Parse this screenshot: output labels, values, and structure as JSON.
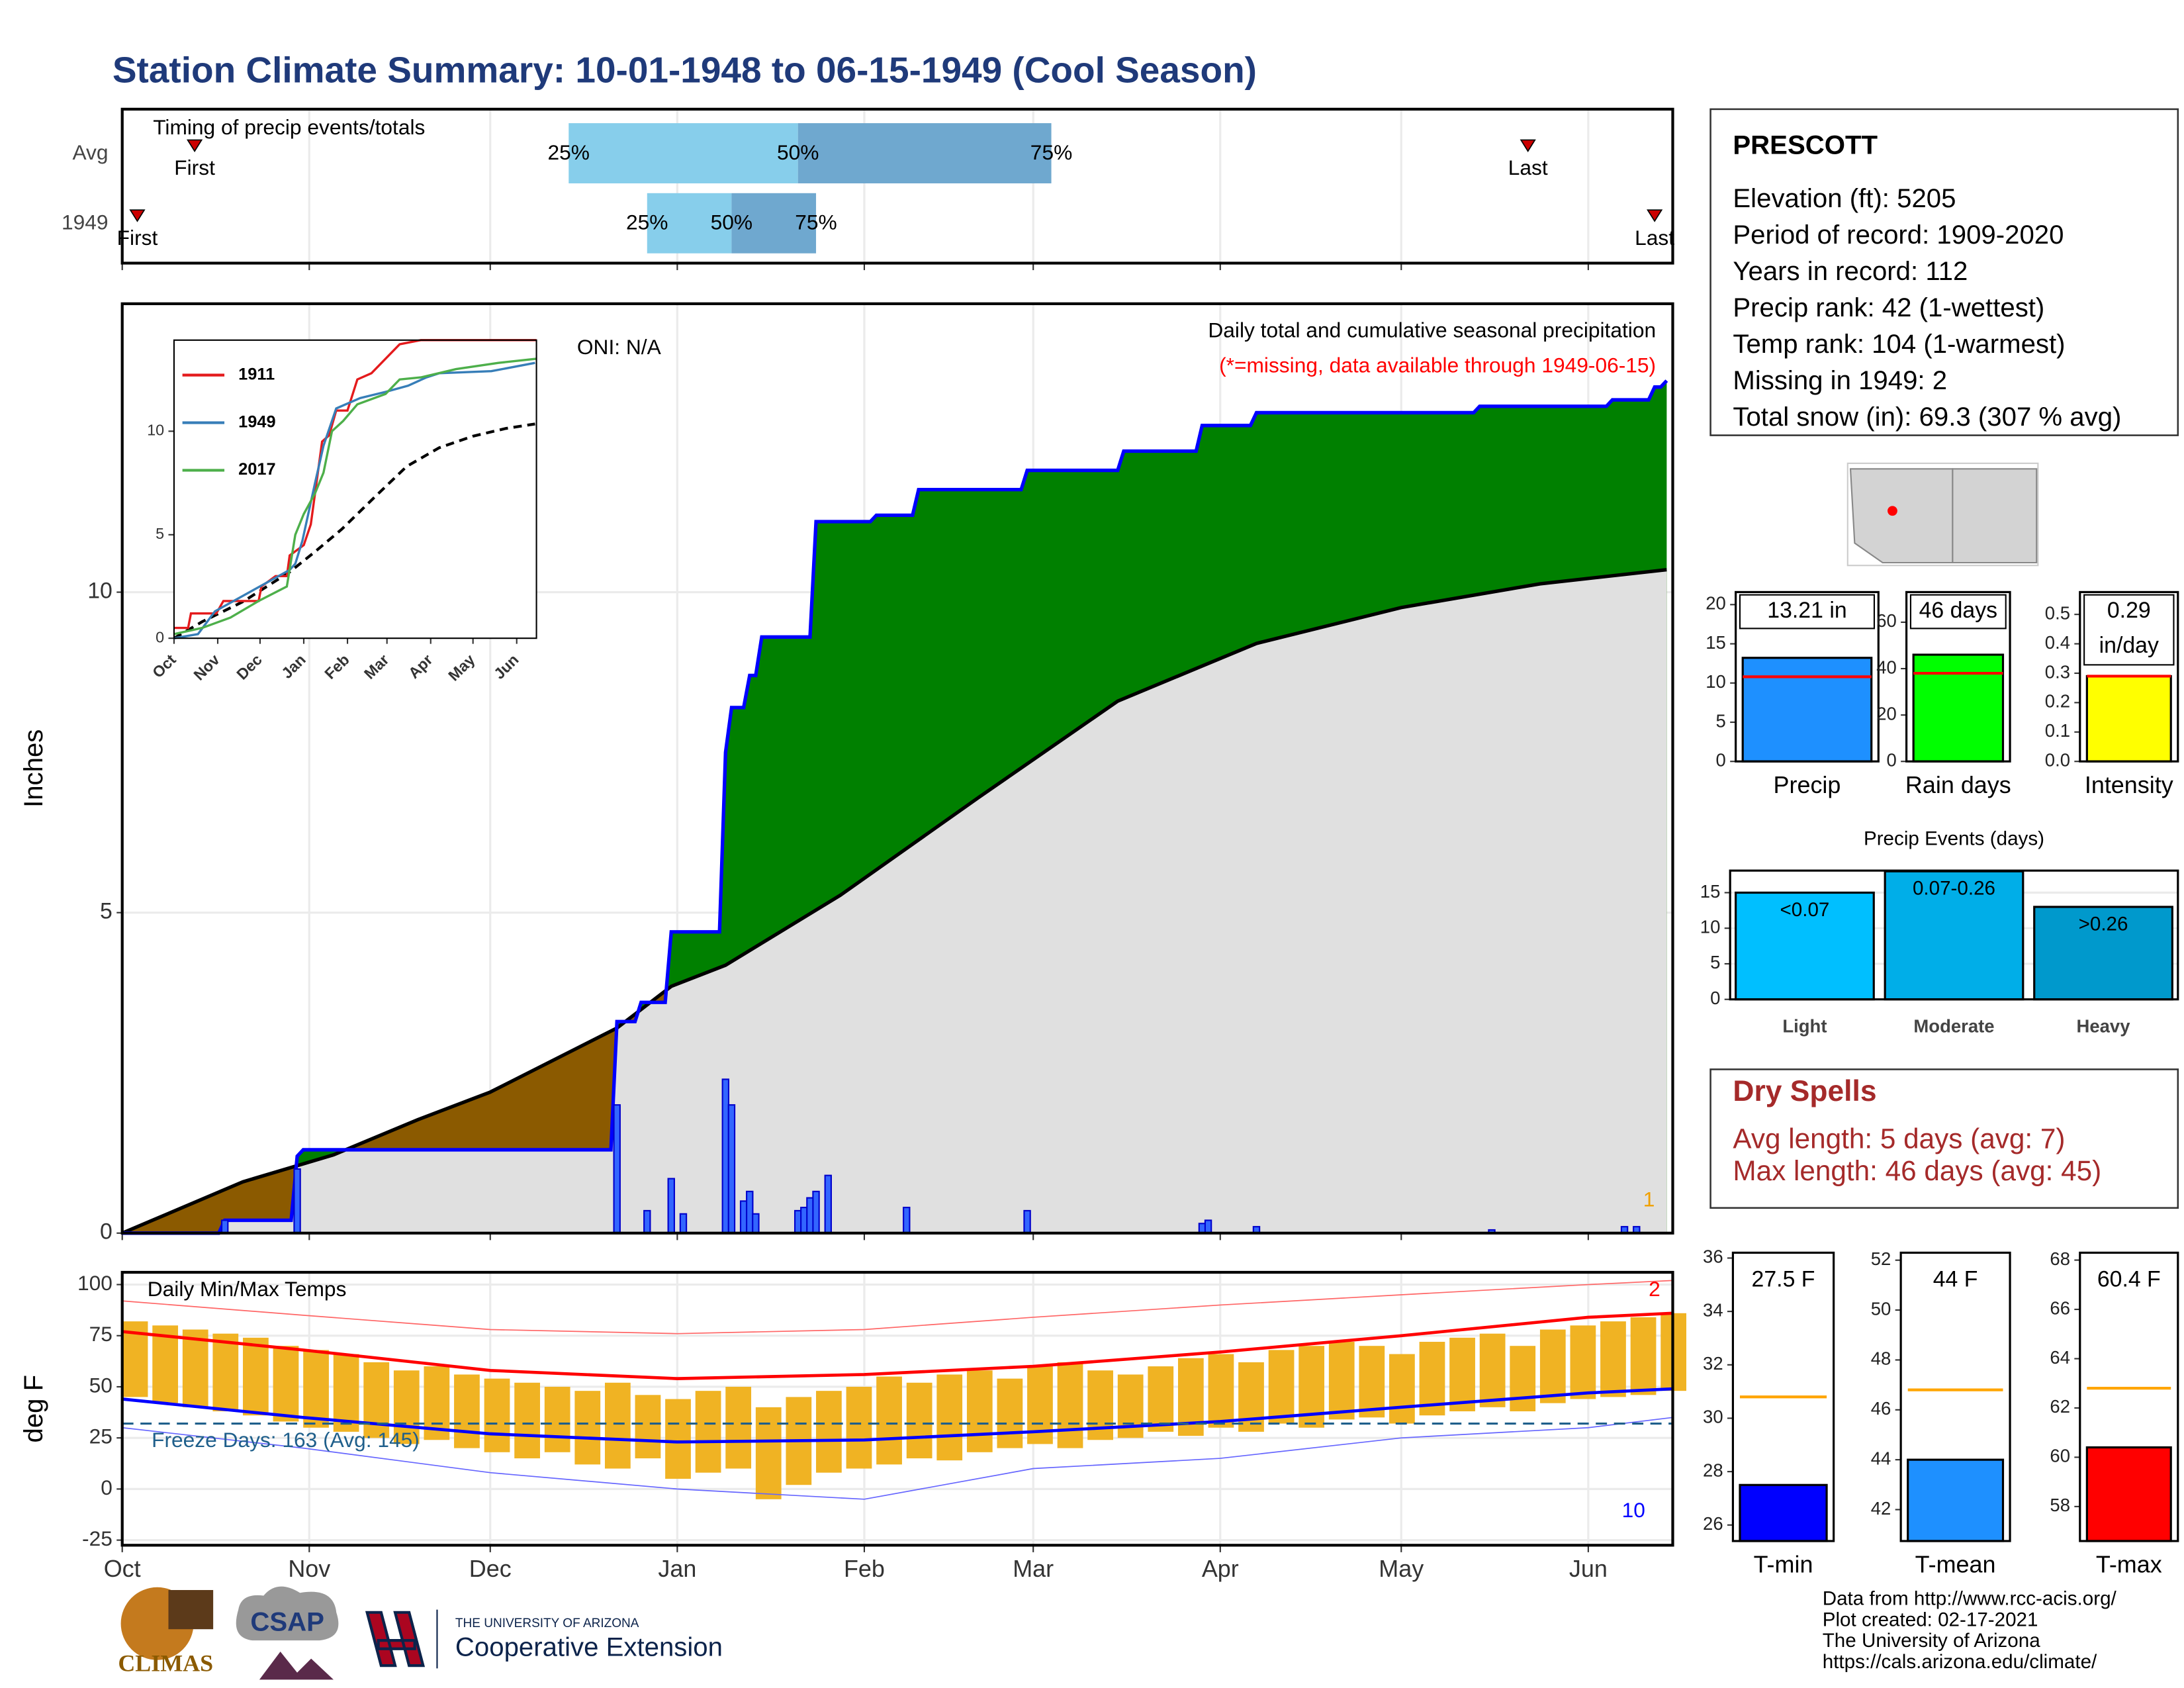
{
  "title": "Station Climate Summary: 10-01-1948 to 06-15-1949 (Cool Season)",
  "chart_data": [
    {
      "type": "timing",
      "title": "Timing of precip events/totals",
      "categories": [
        "Avg",
        "1949"
      ],
      "rows": [
        {
          "first": 12,
          "q25": 74,
          "q50": 112,
          "q75": 154,
          "last": 233
        },
        {
          "first": 2.5,
          "q25": 87,
          "q50": 101,
          "q75": 115,
          "last": 254
        }
      ],
      "first_label": "First",
      "last_label": "Last",
      "quartile_labels": [
        "25%",
        "50%",
        "75%"
      ],
      "colors": [
        "#87ceeb",
        "#6fa8cf"
      ],
      "marker_color": "#cc0000",
      "xlim": [
        0,
        257
      ],
      "xticks": [
        0,
        31,
        61,
        92,
        123,
        151,
        182,
        212,
        243
      ],
      "grid": true
    },
    {
      "type": "cumulative-precip",
      "title": "Daily total and cumulative seasonal precipitation",
      "subtitle": "(*=missing, data available through 1949-06-15)",
      "annotations": [
        "ONI: N/A",
        "1"
      ],
      "ylabel": "Inches",
      "xlim": [
        0,
        257
      ],
      "xticks": [
        0,
        31,
        61,
        92,
        123,
        151,
        182,
        212,
        243
      ],
      "ylim": [
        0,
        14.5
      ],
      "yticks": [
        0,
        5,
        10
      ],
      "grid": true,
      "cumulative": {
        "color": "#0000ff",
        "x": [
          0,
          16,
          17,
          28,
          29,
          30,
          81,
          82,
          85,
          86,
          90,
          91,
          99,
          100,
          101,
          103,
          104,
          105,
          106,
          114,
          115,
          124,
          125,
          131,
          132,
          149,
          150,
          165,
          166,
          178,
          179,
          187,
          188,
          224,
          225,
          246,
          247,
          253,
          254,
          255,
          256
        ],
        "values": [
          0,
          0,
          0.2,
          0.2,
          1.2,
          1.3,
          1.3,
          3.3,
          3.3,
          3.6,
          3.6,
          4.7,
          4.7,
          7.5,
          8.2,
          8.2,
          8.7,
          8.7,
          9.3,
          9.3,
          11.1,
          11.1,
          11.2,
          11.2,
          11.6,
          11.6,
          11.9,
          11.9,
          12.2,
          12.2,
          12.6,
          12.6,
          12.8,
          12.8,
          12.9,
          12.9,
          13.0,
          13.0,
          13.2,
          13.2,
          13.3
        ]
      },
      "average": {
        "color": "#000000",
        "x": [
          0,
          5,
          20,
          35,
          49,
          61,
          82,
          91,
          100,
          119,
          142,
          165,
          188,
          212,
          235,
          256
        ],
        "values": [
          0,
          0.2,
          0.8,
          1.22,
          1.77,
          2.2,
          3.2,
          3.85,
          4.18,
          5.27,
          6.8,
          8.3,
          9.2,
          9.76,
          10.13,
          10.35
        ]
      },
      "daily": {
        "color": "#3366ff",
        "x": [
          17,
          29,
          82,
          87,
          91,
          93,
          100,
          101,
          103,
          104,
          105,
          112,
          113,
          114,
          115,
          117,
          130,
          150,
          179,
          180,
          188,
          227,
          249,
          251
        ],
        "values": [
          0.2,
          1.0,
          2.0,
          0.35,
          0.85,
          0.3,
          2.4,
          2.0,
          0.5,
          0.65,
          0.3,
          0.35,
          0.4,
          0.55,
          0.65,
          0.9,
          0.4,
          0.35,
          0.15,
          0.2,
          0.1,
          0.05,
          0.1,
          0.1
        ]
      },
      "fill_above": "#008000",
      "fill_below": "#8b5a00",
      "fill_base": "#e0e0e0"
    },
    {
      "type": "line",
      "xlim": [
        0,
        257
      ],
      "ylim": [
        0,
        14.4
      ],
      "yticks": [
        0,
        5,
        10
      ],
      "xticks": [
        {
          "value": 0,
          "label": "Oct"
        },
        {
          "value": 31,
          "label": "Nov"
        },
        {
          "value": 61,
          "label": "Dec"
        },
        {
          "value": 92,
          "label": "Jan"
        },
        {
          "value": 123,
          "label": "Feb"
        },
        {
          "value": 151,
          "label": "Mar"
        },
        {
          "value": 182,
          "label": "Apr"
        },
        {
          "value": 212,
          "label": "May"
        },
        {
          "value": 243,
          "label": "Jun"
        }
      ],
      "series": [
        {
          "name": "1911",
          "color": "#e41a1c",
          "x": [
            0,
            10,
            12,
            30,
            35,
            60,
            62,
            72,
            80,
            82,
            92,
            97,
            102,
            105,
            110,
            115,
            123,
            130,
            140,
            150,
            160,
            175,
            257
          ],
          "values": [
            0.5,
            0.5,
            1.2,
            1.2,
            1.8,
            1.8,
            2.5,
            3.0,
            3.0,
            4.0,
            4.5,
            5.5,
            8,
            9.5,
            9.8,
            11,
            11,
            12.5,
            12.8,
            13.5,
            14.2,
            14.4,
            14.4
          ]
        },
        {
          "name": "1949",
          "color": "#377eb8",
          "x": [
            0,
            17,
            29,
            82,
            86,
            91,
            100,
            104,
            106,
            115,
            132,
            150,
            166,
            179,
            188,
            225,
            256
          ],
          "values": [
            0,
            0.2,
            1.3,
            3.3,
            3.6,
            4.7,
            7.5,
            8.7,
            9.3,
            11.1,
            11.6,
            11.9,
            12.2,
            12.6,
            12.8,
            12.9,
            13.3
          ]
        },
        {
          "name": "2017",
          "color": "#4daf4a",
          "x": [
            0,
            20,
            40,
            60,
            80,
            86,
            92,
            100,
            106,
            112,
            120,
            130,
            150,
            160,
            175,
            200,
            230,
            257
          ],
          "values": [
            0.2,
            0.5,
            1,
            1.8,
            2.5,
            5,
            6,
            7,
            8,
            10,
            10.5,
            11.3,
            11.8,
            12.5,
            12.6,
            13,
            13.3,
            13.5
          ]
        }
      ],
      "average": {
        "color": "#000000",
        "x": [
          0,
          20,
          49,
          82,
          100,
          119,
          142,
          165,
          188,
          212,
          235,
          256
        ],
        "values": [
          0,
          0.8,
          1.77,
          3.2,
          4.18,
          5.27,
          6.8,
          8.3,
          9.2,
          9.76,
          10.13,
          10.35
        ]
      }
    },
    {
      "type": "temperature",
      "title": "Daily Min/Max Temps",
      "ylabel": "deg F",
      "annotations": [
        "Freeze Days: 163 (Avg: 145)",
        "2",
        "10"
      ],
      "xlim": [
        0,
        257
      ],
      "ylim": [
        -27.5,
        106
      ],
      "yticks": [
        -25,
        0,
        25,
        50,
        75,
        100
      ],
      "grid": true,
      "xticks": [
        {
          "value": 0,
          "label": "Oct"
        },
        {
          "value": 31,
          "label": "Nov"
        },
        {
          "value": 61,
          "label": "Dec"
        },
        {
          "value": 92,
          "label": "Jan"
        },
        {
          "value": 123,
          "label": "Feb"
        },
        {
          "value": 151,
          "label": "Mar"
        },
        {
          "value": 182,
          "label": "Apr"
        },
        {
          "value": 212,
          "label": "May"
        },
        {
          "value": 243,
          "label": "Jun"
        }
      ],
      "x": [
        0,
        5,
        10,
        15,
        20,
        25,
        30,
        35,
        40,
        45,
        50,
        55,
        60,
        65,
        70,
        75,
        80,
        85,
        90,
        95,
        100,
        105,
        110,
        115,
        120,
        125,
        130,
        135,
        140,
        145,
        150,
        155,
        160,
        165,
        170,
        175,
        180,
        185,
        190,
        195,
        200,
        205,
        210,
        215,
        220,
        225,
        230,
        235,
        240,
        245,
        250,
        255
      ],
      "max": [
        82,
        80,
        78,
        76,
        74,
        70,
        68,
        66,
        62,
        58,
        60,
        56,
        54,
        52,
        50,
        48,
        52,
        46,
        44,
        48,
        50,
        40,
        45,
        48,
        50,
        55,
        52,
        56,
        58,
        54,
        60,
        62,
        58,
        56,
        60,
        64,
        66,
        62,
        68,
        70,
        72,
        70,
        66,
        72,
        74,
        76,
        70,
        78,
        80,
        82,
        84,
        86
      ],
      "min": [
        45,
        42,
        40,
        38,
        36,
        33,
        30,
        28,
        25,
        22,
        24,
        20,
        18,
        15,
        18,
        12,
        10,
        15,
        5,
        8,
        10,
        -5,
        2,
        8,
        10,
        12,
        15,
        14,
        18,
        20,
        22,
        20,
        24,
        25,
        28,
        26,
        30,
        28,
        32,
        30,
        34,
        35,
        32,
        36,
        38,
        40,
        38,
        42,
        44,
        45,
        46,
        48
      ],
      "bar_color": "#f0b323",
      "freeze_line": 32,
      "freeze_color": "#1f5f8b",
      "lines": [
        {
          "color": "#ff0000",
          "x": [
            0,
            30,
            61,
            92,
            123,
            151,
            182,
            212,
            243,
            257
          ],
          "values": [
            77,
            68,
            58,
            54,
            56,
            60,
            67,
            75,
            84,
            86
          ]
        },
        {
          "color": "#0000ff",
          "x": [
            0,
            30,
            61,
            92,
            123,
            151,
            182,
            212,
            243,
            257
          ],
          "values": [
            44,
            35,
            27,
            23,
            24,
            28,
            33,
            40,
            47,
            49
          ]
        },
        {
          "color": "#ff6666",
          "x": [
            0,
            30,
            61,
            92,
            123,
            151,
            182,
            212,
            243,
            257
          ],
          "values": [
            92,
            85,
            78,
            76,
            78,
            84,
            90,
            95,
            100,
            102
          ]
        },
        {
          "color": "#6666ff",
          "x": [
            0,
            30,
            61,
            92,
            123,
            151,
            182,
            212,
            243,
            257
          ],
          "values": [
            30,
            20,
            8,
            0,
            -5,
            10,
            15,
            25,
            30,
            35
          ]
        }
      ]
    },
    {
      "type": "bar",
      "categories": [
        "Precip"
      ],
      "values": [
        13.21
      ],
      "value_labels": [
        "13.21 in"
      ],
      "color": "#1e90ff",
      "average": 10.8,
      "average_color": "#ff0000",
      "ylim": [
        0,
        21.6
      ],
      "yticks": [
        0,
        5,
        10,
        15,
        20
      ]
    },
    {
      "type": "bar",
      "categories": [
        "Rain days"
      ],
      "values": [
        46
      ],
      "value_labels": [
        "46 days"
      ],
      "color": "#00ff00",
      "average": 38,
      "average_color": "#ff0000",
      "ylim": [
        0,
        73
      ],
      "yticks": [
        0,
        20,
        40,
        60
      ]
    },
    {
      "type": "bar",
      "categories": [
        "Intensity"
      ],
      "values": [
        0.29
      ],
      "value_labels": [
        "0.29"
      ],
      "unit": "in/day",
      "color": "#ffff00",
      "average": 0.29,
      "average_color": "#ff0000",
      "ylim": [
        0,
        0.576
      ],
      "yticks": [
        {
          "value": 0,
          "label": "0.0"
        },
        0.1,
        0.2,
        0.3,
        0.4,
        0.5
      ]
    },
    {
      "type": "bar",
      "title": "Precip Events (days)",
      "categories": [
        "Light",
        "Moderate",
        "Heavy"
      ],
      "values": [
        15,
        18,
        13
      ],
      "bar_labels": [
        "<0.07",
        "0.07-0.26",
        ">0.26"
      ],
      "colors": [
        "#00bfff",
        "#00aee8",
        "#0099cc"
      ],
      "ylim": [
        0,
        18.1
      ],
      "yticks": [
        0,
        5,
        10,
        15
      ],
      "grid": true
    },
    {
      "type": "bar",
      "categories": [
        "T-min"
      ],
      "values": [
        27.5
      ],
      "value_labels": [
        "27.5 F"
      ],
      "color": "#0000ff",
      "average": 30.8,
      "average_color": "#ffa500",
      "ylim": [
        25.4,
        36.2
      ],
      "yticks": [
        26,
        28,
        30,
        32,
        34,
        36
      ]
    },
    {
      "type": "bar",
      "categories": [
        "T-mean"
      ],
      "values": [
        44
      ],
      "value_labels": [
        "44 F"
      ],
      "color": "#1e90ff",
      "average": 46.8,
      "average_color": "#ffa500",
      "ylim": [
        40.74,
        52.3
      ],
      "yticks": [
        42,
        44,
        46,
        48,
        50,
        52
      ]
    },
    {
      "type": "bar",
      "categories": [
        "T-max"
      ],
      "values": [
        60.4
      ],
      "value_labels": [
        "60.4 F"
      ],
      "color": "#ff0000",
      "average": 62.8,
      "average_color": "#ffa500",
      "ylim": [
        56.6,
        68.3
      ],
      "yticks": [
        58,
        60,
        62,
        64,
        66,
        68
      ]
    }
  ],
  "station": {
    "name": "PRESCOTT",
    "lines": [
      "Elevation (ft): 5205",
      "Period of record: 1909-2020",
      "Years in record: 112",
      "Precip rank: 42 (1-wettest)",
      "Temp rank: 104 (1-warmest)",
      "Missing in 1949: 2",
      "Total snow (in): 69.3 (307 % avg)"
    ]
  },
  "dry_spells": {
    "title": "Dry Spells",
    "lines": [
      "Avg length: 5 days (avg: 7)",
      "Max length: 46 days (avg: 45)"
    ]
  },
  "footer": {
    "lines": [
      "Data from http://www.rcc-acis.org/",
      "Plot created: 02-17-2021",
      "The University of Arizona",
      "https://cals.arizona.edu/climate/"
    ]
  },
  "logos": {
    "climas": "CLIMAS",
    "csap": "CSAP",
    "university": "THE UNIVERSITY OF ARIZONA",
    "extension": "Cooperative Extension"
  }
}
